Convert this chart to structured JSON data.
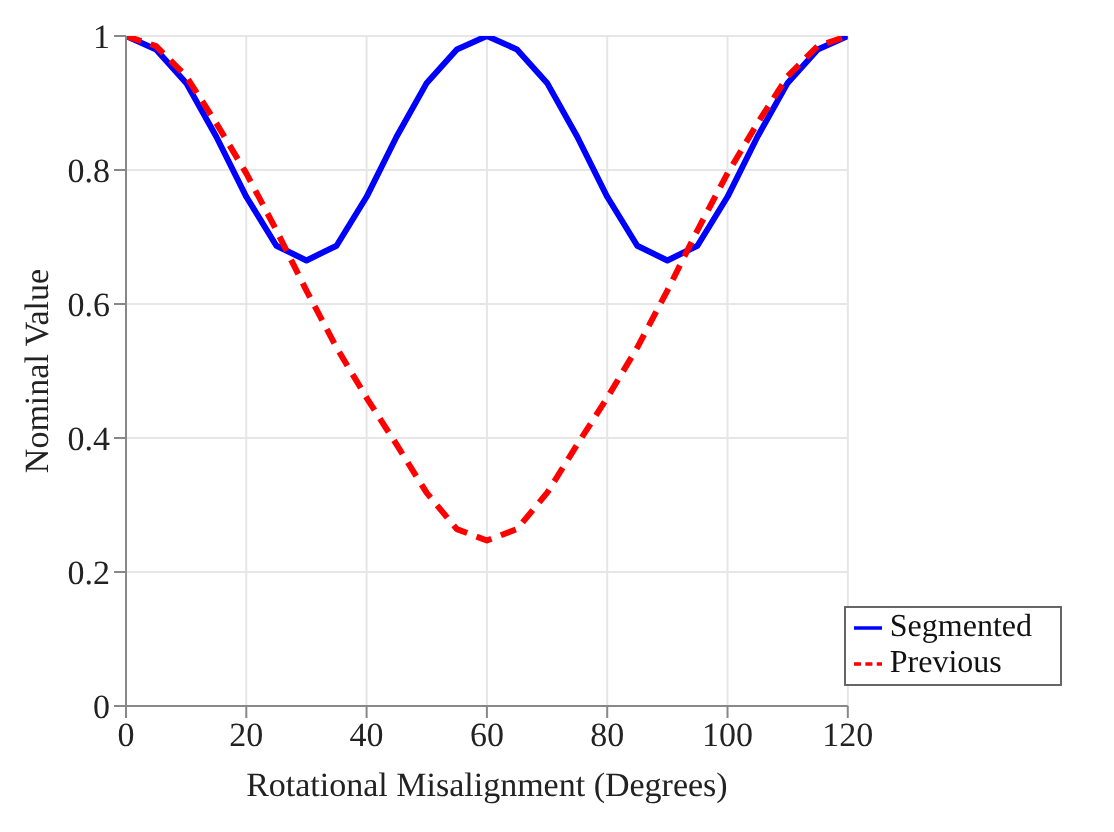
{
  "chart_data": {
    "type": "line",
    "xlabel": "Rotational Misalignment (Degrees)",
    "ylabel": "Nominal Value",
    "x": [
      0,
      5,
      10,
      15,
      20,
      25,
      30,
      35,
      40,
      45,
      50,
      55,
      60,
      65,
      70,
      75,
      80,
      85,
      90,
      95,
      100,
      105,
      110,
      115,
      120
    ],
    "series": [
      {
        "name": "Segmented",
        "color": "#0000ff",
        "line_style": "solid",
        "values": [
          1,
          0.98,
          0.93,
          0.85,
          0.76,
          0.687,
          0.665,
          0.687,
          0.76,
          0.85,
          0.93,
          0.98,
          1,
          0.98,
          0.93,
          0.85,
          0.76,
          0.687,
          0.665,
          0.687,
          0.76,
          0.85,
          0.93,
          0.98,
          1
        ]
      },
      {
        "name": "Previous",
        "color": "#ff0000",
        "line_style": "dashed",
        "values": [
          1,
          0.985,
          0.94,
          0.87,
          0.795,
          0.71,
          0.62,
          0.535,
          0.46,
          0.39,
          0.318,
          0.264,
          0.247,
          0.264,
          0.318,
          0.39,
          0.46,
          0.535,
          0.62,
          0.71,
          0.795,
          0.87,
          0.94,
          0.985,
          1
        ]
      }
    ],
    "xlim": [
      0,
      120
    ],
    "xticks": [
      0,
      20,
      40,
      60,
      80,
      100,
      120
    ],
    "ylim": [
      0,
      1
    ],
    "yticks": [
      0,
      0.2,
      0.4,
      0.6,
      0.8,
      1
    ],
    "grid": true,
    "legend": "bottom right",
    "marker": "none"
  }
}
